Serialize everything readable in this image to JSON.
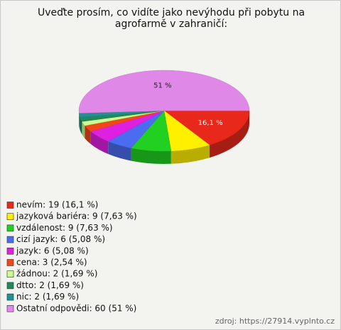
{
  "chart_data": {
    "type": "pie",
    "title": "Uveďte prosím, co vidíte jako nevýhodu při pobytu na agrofarmě v zahraničí:",
    "categories": [
      "nevím: 19 (16,1 %)",
      "jazyková bariéra: 9 (7,63 %)",
      "vzdálenost: 9 (7,63 %)",
      "cizí jazyk: 6 (5,08 %)",
      "jazyk: 6 (5,08 %)",
      "cena: 3 (2,54 %)",
      "žádnou: 2 (1,69 %)",
      "dtto: 2 (1,69 %)",
      "nic: 2 (1,69 %)",
      "Ostatní odpovědi: 60 (51 %)"
    ],
    "values": [
      16.1,
      7.63,
      7.63,
      5.08,
      5.08,
      2.54,
      1.69,
      1.69,
      1.69,
      51
    ],
    "value_labels": [
      "16,1 %",
      null,
      null,
      null,
      null,
      null,
      null,
      null,
      null,
      "51 %"
    ],
    "colors": [
      "#e8281a",
      "#fff000",
      "#22d022",
      "#4a6cf0",
      "#e020e0",
      "#f04818",
      "#ccff90",
      "#22885a",
      "#229090",
      "#e088e8"
    ],
    "source": "zdroj: https://27914.vyplnto.cz"
  }
}
